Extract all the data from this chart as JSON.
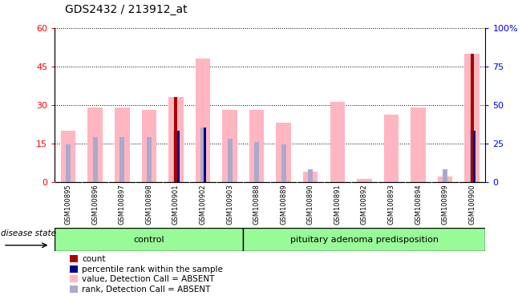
{
  "title": "GDS2432 / 213912_at",
  "samples": [
    "GSM100895",
    "GSM100896",
    "GSM100897",
    "GSM100898",
    "GSM100901",
    "GSM100902",
    "GSM100903",
    "GSM100888",
    "GSM100889",
    "GSM100890",
    "GSM100891",
    "GSM100892",
    "GSM100893",
    "GSM100894",
    "GSM100899",
    "GSM100900"
  ],
  "n_control": 7,
  "n_pituitary": 9,
  "control_label": "control",
  "pituitary_label": "pituitary adenoma predisposition",
  "pink_values": [
    20,
    29,
    29,
    28,
    33,
    48,
    28,
    28,
    23,
    4,
    31,
    1,
    26,
    29,
    2,
    50
  ],
  "blue_rank_values": [
    24,
    29,
    29,
    29,
    33,
    35,
    28,
    26,
    24,
    8,
    0,
    0,
    0,
    0,
    8,
    33
  ],
  "red_count_values": [
    0,
    0,
    0,
    0,
    33,
    0,
    0,
    0,
    0,
    0,
    0,
    0,
    0,
    0,
    0,
    50
  ],
  "blue_pct_values": [
    0,
    0,
    0,
    0,
    33,
    35,
    0,
    0,
    0,
    0,
    0,
    0,
    0,
    0,
    0,
    33
  ],
  "ylim_left": [
    0,
    60
  ],
  "ylim_right": [
    0,
    100
  ],
  "yticks_left": [
    0,
    15,
    30,
    45,
    60
  ],
  "ytick_labels_left": [
    "0",
    "15",
    "30",
    "45",
    "60"
  ],
  "yticks_right_scaled": [
    0,
    25,
    50,
    75,
    100
  ],
  "ytick_labels_right": [
    "0",
    "25",
    "50",
    "75",
    "100%"
  ],
  "pink_color": "#FFB6C1",
  "lightblue_color": "#AAAACC",
  "red_color": "#AA0000",
  "darkblue_color": "#00008B",
  "control_bg": "#98FB98",
  "pituitary_bg": "#98FB98",
  "legend_items": [
    "count",
    "percentile rank within the sample",
    "value, Detection Call = ABSENT",
    "rank, Detection Call = ABSENT"
  ],
  "legend_colors": [
    "#AA0000",
    "#00008B",
    "#FFB6C1",
    "#AAAACC"
  ]
}
